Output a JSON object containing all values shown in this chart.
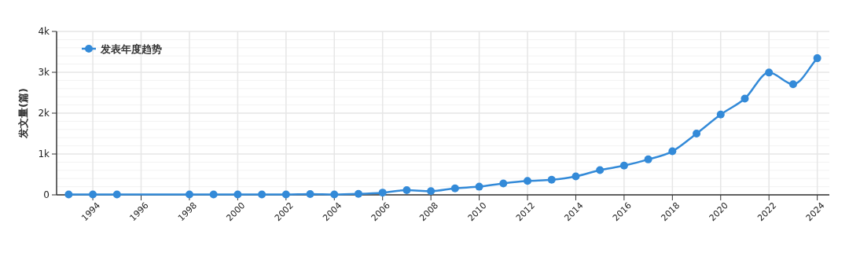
{
  "chart_data": {
    "type": "line",
    "ylabel": "发文量(篇)",
    "x": [
      1993,
      1994,
      1995,
      1998,
      1999,
      2000,
      2001,
      2002,
      2003,
      2004,
      2005,
      2006,
      2007,
      2008,
      2009,
      2010,
      2011,
      2012,
      2013,
      2014,
      2015,
      2016,
      2017,
      2018,
      2019,
      2020,
      2021,
      2022,
      2023,
      2024
    ],
    "series": [
      {
        "name": "发表年度趋势",
        "color": "#338ad8",
        "values": [
          10,
          10,
          10,
          10,
          10,
          10,
          10,
          10,
          20,
          10,
          25,
          55,
          115,
          90,
          160,
          200,
          280,
          340,
          370,
          453,
          606,
          715,
          868,
          1066,
          1500,
          1966,
          2355,
          2993,
          2706,
          3344
        ]
      }
    ],
    "xlim": [
      1992.5,
      2024.5
    ],
    "xticks": [
      1994,
      1996,
      1998,
      2000,
      2002,
      2004,
      2006,
      2008,
      2010,
      2012,
      2014,
      2016,
      2018,
      2020,
      2022,
      2024
    ],
    "ylim": [
      0,
      4000
    ],
    "yticks": [
      0,
      {
        "value": 1000,
        "label": "1k"
      },
      {
        "value": 2000,
        "label": "2k"
      },
      {
        "value": 3000,
        "label": "3k"
      },
      {
        "value": 4000,
        "label": "4k"
      }
    ],
    "grid": true,
    "legend": "top left",
    "marker": "circle",
    "line_style": "solid"
  }
}
